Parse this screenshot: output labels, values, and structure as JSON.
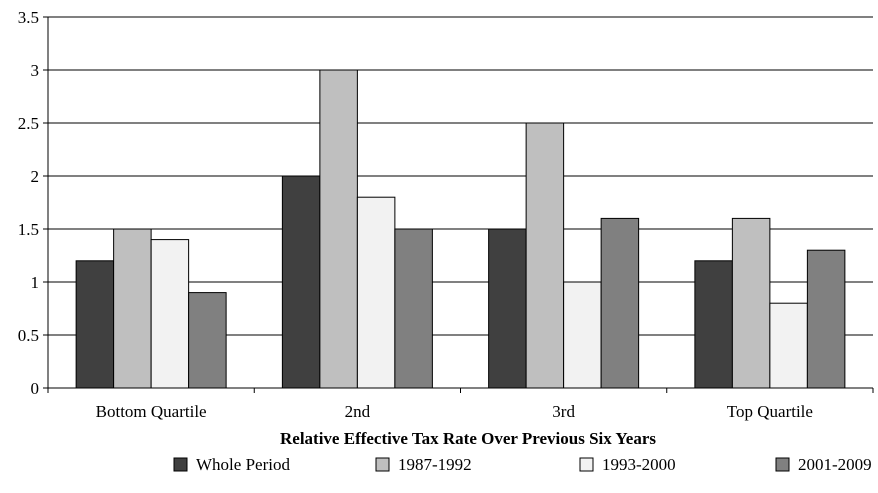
{
  "chart_data": {
    "type": "bar",
    "title": "",
    "xlabel": "Relative Effective Tax Rate Over Previous Six Years",
    "ylabel": "",
    "ylim": [
      0,
      3.5
    ],
    "yticks": [
      "0",
      "0.5",
      "1",
      "1.5",
      "2",
      "2.5",
      "3",
      "3.5"
    ],
    "grid": true,
    "legend_position": "bottom",
    "categories": [
      "Bottom Quartile",
      "2nd",
      "3rd",
      "Top Quartile"
    ],
    "series": [
      {
        "name": "Whole Period",
        "color": "#404040",
        "values": [
          1.2,
          2.0,
          1.5,
          1.2
        ]
      },
      {
        "name": "1987-1992",
        "color": "#bfbfbf",
        "values": [
          1.5,
          3.0,
          2.5,
          1.6
        ]
      },
      {
        "name": "1993-2000",
        "color": "#f2f2f2",
        "values": [
          1.4,
          1.8,
          1.0,
          0.8
        ]
      },
      {
        "name": "2001-2009",
        "color": "#808080",
        "values": [
          0.9,
          1.5,
          1.6,
          1.3
        ]
      }
    ]
  }
}
